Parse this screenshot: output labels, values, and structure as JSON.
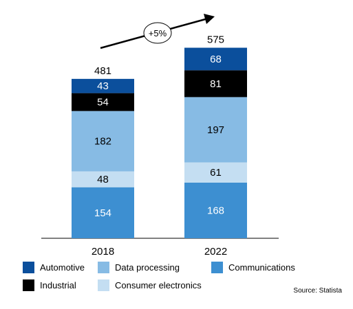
{
  "chart_data": {
    "type": "bar",
    "stacked": true,
    "categories": [
      "2018",
      "2022"
    ],
    "totals": [
      481,
      575
    ],
    "series": [
      {
        "name": "Communications",
        "values": [
          154,
          168
        ],
        "color": "#3d8fd1"
      },
      {
        "name": "Consumer electronics",
        "values": [
          48,
          61
        ],
        "color": "#c4def2"
      },
      {
        "name": "Data processing",
        "values": [
          182,
          197
        ],
        "color": "#87bbe4"
      },
      {
        "name": "Industrial",
        "values": [
          54,
          81
        ],
        "color": "#000000"
      },
      {
        "name": "Automotive",
        "values": [
          43,
          68
        ],
        "color": "#0b4f9c"
      }
    ],
    "growth_label": "+5%",
    "grid": false,
    "legend_position": "bottom"
  },
  "source": "Source: Statista"
}
